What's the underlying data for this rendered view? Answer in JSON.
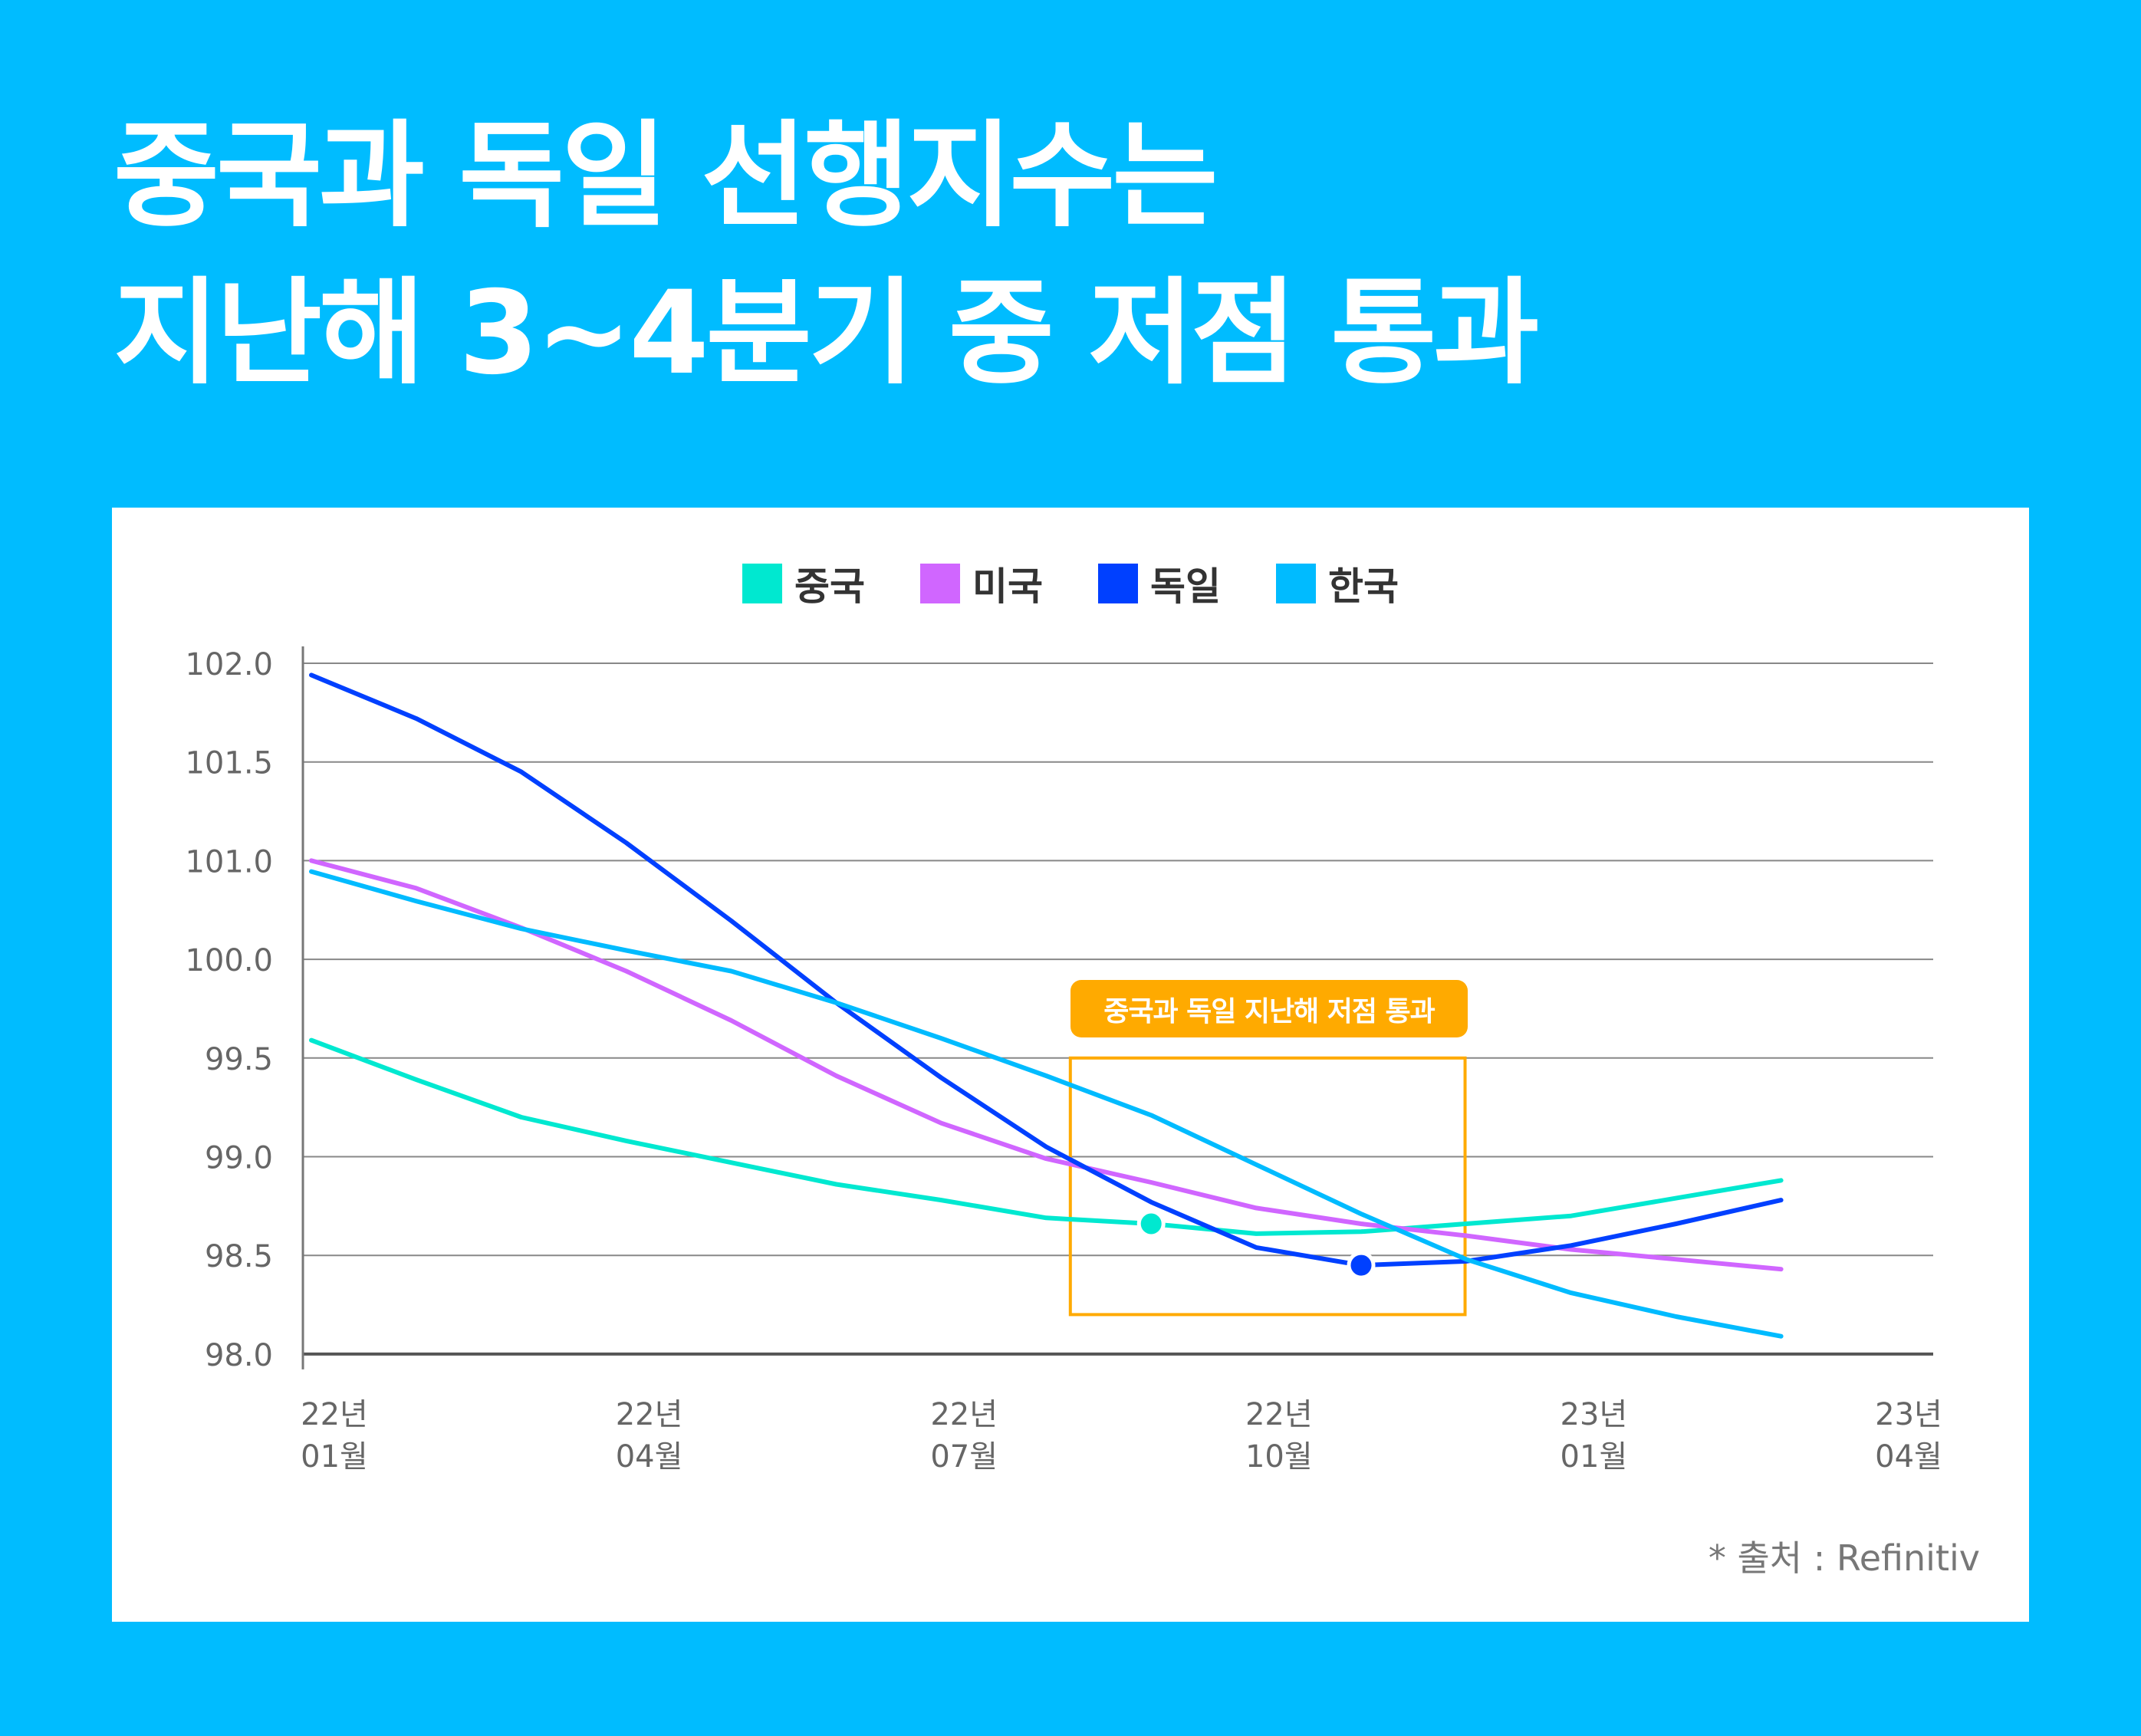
{
  "title_lines": [
    "중국과 독일 선행지수는",
    "지난해 3~4분기 중 저점 통과"
  ],
  "source": "* 출처 : Refinitiv",
  "annotation": "중국과 독일 지난해 저점 통과",
  "colors": {
    "background": "#00bcff",
    "annotation": "#ffaa00"
  },
  "chart_data": {
    "type": "line",
    "title": "",
    "xlabel": "",
    "ylabel": "",
    "x": [
      "2022-01",
      "2022-02",
      "2022-03",
      "2022-04",
      "2022-05",
      "2022-06",
      "2022-07",
      "2022-08",
      "2022-09",
      "2022-10",
      "2022-11",
      "2022-12",
      "2023-01",
      "2023-02",
      "2023-03"
    ],
    "x_tick_labels": [
      [
        "22년",
        "01월"
      ],
      [
        "22년",
        "04월"
      ],
      [
        "22년",
        "07월"
      ],
      [
        "22년",
        "10월"
      ],
      [
        "23년",
        "01월"
      ],
      [
        "23년",
        "04월"
      ]
    ],
    "y_tick_labels": [
      "102.0",
      "101.5",
      "101.0",
      "100.0",
      "99.5",
      "99.0",
      "98.5",
      "98.0"
    ],
    "ylim": [
      98.0,
      102.0
    ],
    "grid": true,
    "legend_position": "top-center",
    "series": [
      {
        "name": "중국",
        "color": "#00e8d0",
        "values": [
          99.59,
          99.39,
          99.2,
          99.08,
          98.97,
          98.86,
          98.78,
          98.69,
          98.66,
          98.61,
          98.62,
          98.66,
          98.7,
          98.79,
          98.88
        ]
      },
      {
        "name": "미국",
        "color": "#d066ff",
        "values": [
          101.0,
          100.72,
          100.32,
          99.94,
          99.69,
          99.41,
          99.17,
          98.99,
          98.87,
          98.74,
          98.66,
          98.6,
          98.53,
          98.48,
          98.43
        ]
      },
      {
        "name": "독일",
        "color": "#0040ff",
        "values": [
          101.94,
          101.72,
          101.45,
          101.09,
          100.39,
          99.78,
          99.4,
          99.05,
          98.77,
          98.54,
          98.45,
          98.47,
          98.55,
          98.66,
          98.78
        ]
      },
      {
        "name": "한국",
        "color": "#00bbff",
        "values": [
          100.89,
          100.59,
          100.31,
          100.09,
          99.94,
          99.78,
          99.6,
          99.41,
          99.21,
          98.96,
          98.71,
          98.48,
          98.31,
          98.19,
          98.09
        ]
      }
    ],
    "markers": [
      {
        "series": "중국",
        "x": "2022-09",
        "y": 98.66
      },
      {
        "series": "독일",
        "x": "2022-11",
        "y": 98.45
      }
    ],
    "highlight_box": {
      "x_from": "2022-08",
      "x_to": "2022-12",
      "y_from": 98.2,
      "y_to": 99.5
    }
  }
}
